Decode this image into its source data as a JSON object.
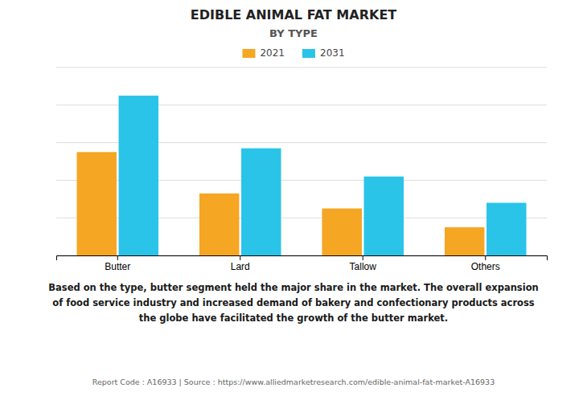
{
  "chart_data": {
    "type": "bar",
    "title": "EDIBLE ANIMAL FAT MARKET",
    "subtitle": "BY TYPE",
    "categories": [
      "Butter",
      "Lard",
      "Tallow",
      "Others"
    ],
    "series": [
      {
        "name": "2021",
        "color": "#F5A623",
        "values": [
          55,
          33,
          25,
          15
        ]
      },
      {
        "name": "2031",
        "color": "#29C4E8",
        "values": [
          85,
          57,
          42,
          28
        ]
      }
    ],
    "ylim": [
      0,
      100
    ],
    "yticks": [
      0,
      20,
      40,
      60,
      80,
      100
    ],
    "grid": true,
    "tick_labels": "x",
    "legend": "top",
    "annotations": [
      "Based on the type, butter segment held the major share in the market. The overall expansion\nof food service industry and increased demand of bakery and confectionary products across\nthe globe have facilitated the growth of the butter market.",
      "Report Code : A16933  |  Source : https://www.alliedmarketresearch.com/edible-animal-fat-market-A16933"
    ]
  }
}
